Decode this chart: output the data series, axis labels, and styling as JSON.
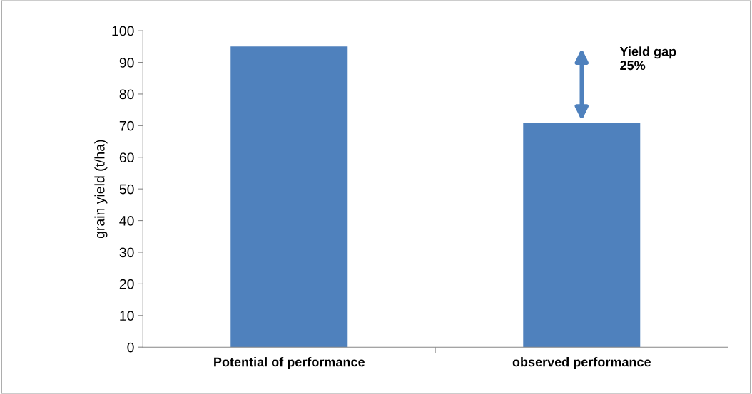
{
  "chart_data": {
    "type": "bar",
    "ylabel": "grain yield (t/ha)",
    "categories": [
      "Potential of performance",
      "observed performance"
    ],
    "values": [
      95,
      71
    ],
    "color": "#4f81bd",
    "ylim": [
      0,
      100
    ],
    "yticks": [
      0,
      10,
      20,
      30,
      40,
      50,
      60,
      70,
      80,
      90,
      100
    ],
    "grid": false,
    "legend": false,
    "annotations": [
      "Yield gap\n25%"
    ]
  }
}
